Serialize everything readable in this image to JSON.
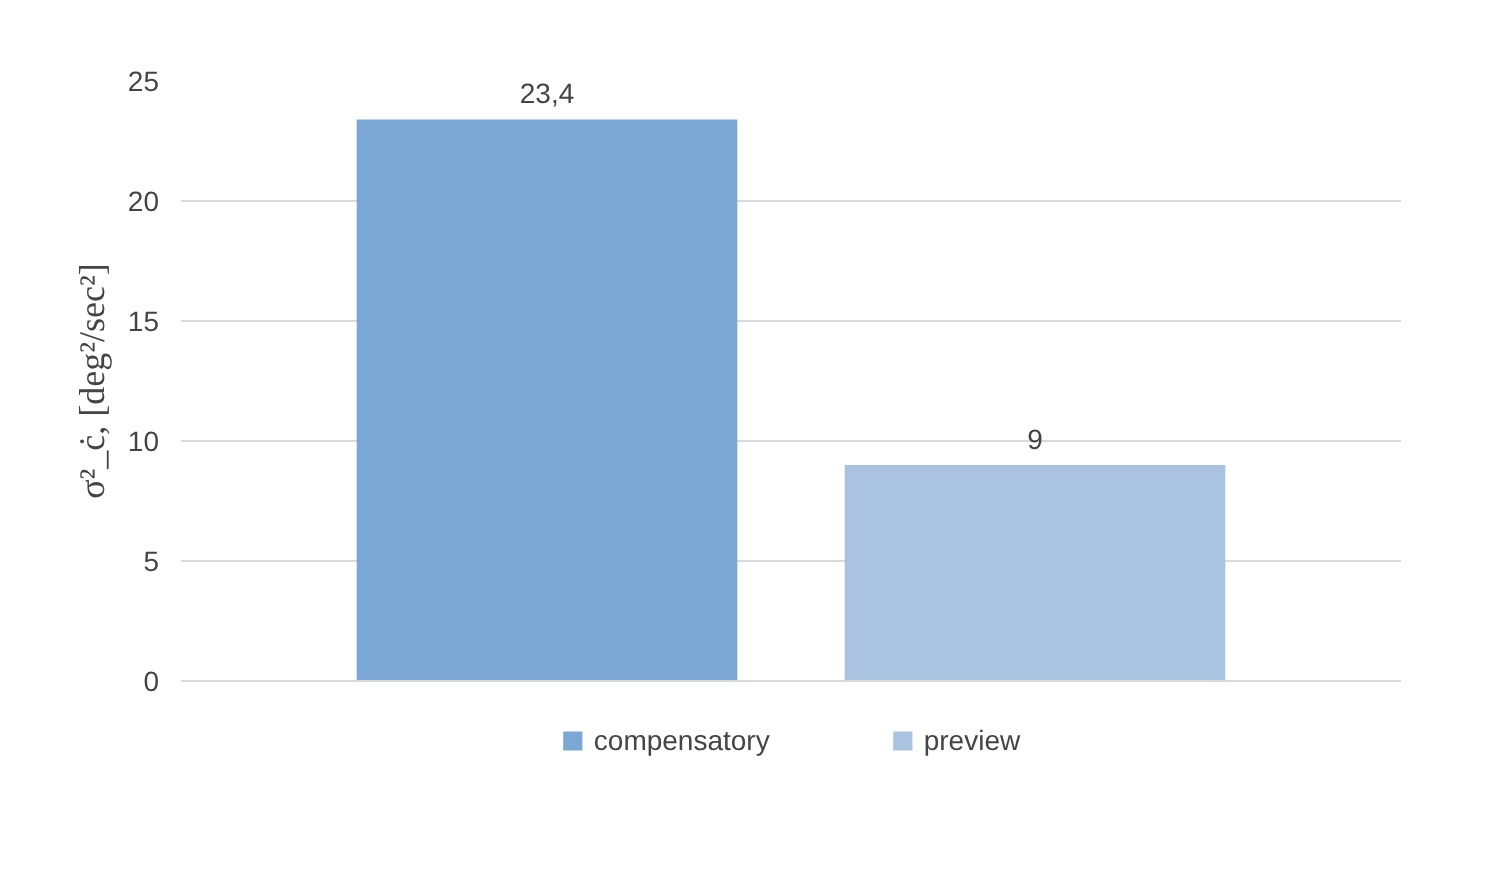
{
  "chart_data": {
    "type": "bar",
    "ylabel": "σ²_ċ, [deg²/sec²]",
    "categories": [
      null
    ],
    "series": [
      {
        "name": "compensatory",
        "color": "#7ba7d4",
        "values": [
          23.4
        ],
        "value_labels": [
          "23,4"
        ]
      },
      {
        "name": "preview",
        "color": "#a9c3e0",
        "values": [
          9
        ],
        "value_labels": [
          "9"
        ]
      }
    ],
    "ylim": [
      0,
      25
    ],
    "yticks": [
      0,
      5,
      10,
      15,
      20,
      25
    ],
    "grid": "y",
    "legend": "bottom"
  }
}
